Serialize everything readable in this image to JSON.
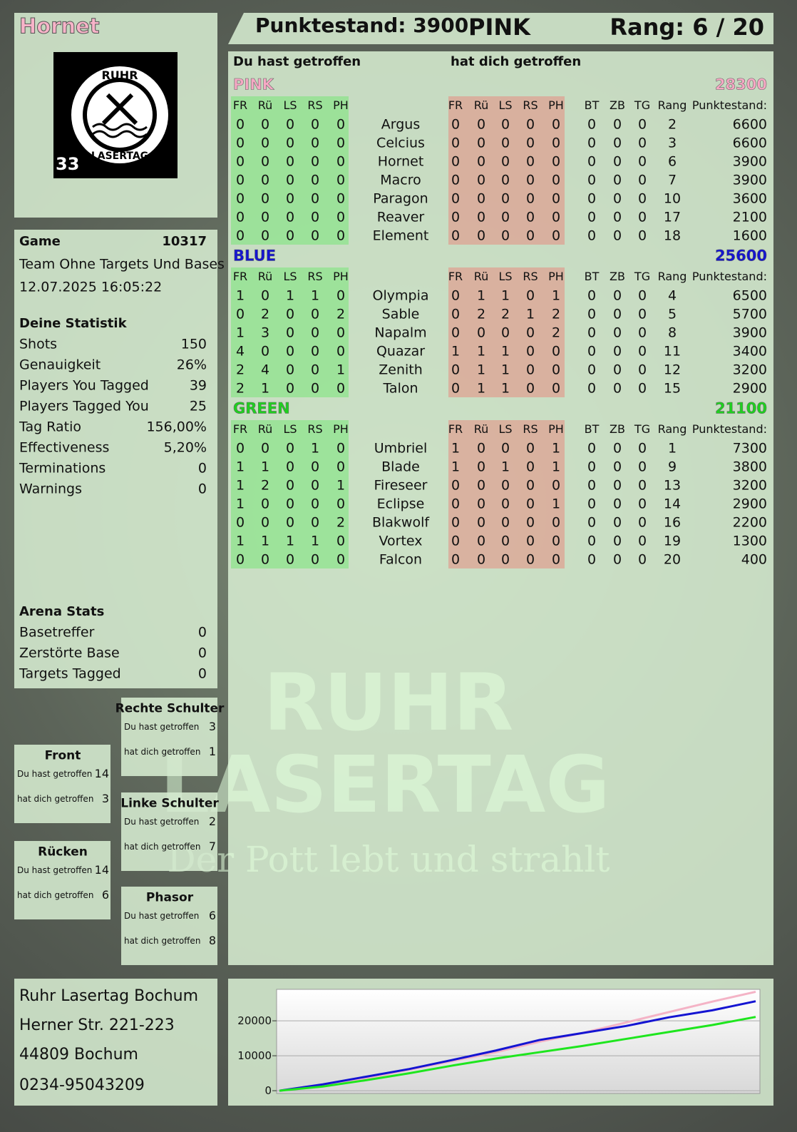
{
  "header": {
    "player": "Hornet",
    "score": "Punktestand: 3900",
    "team": "PINK",
    "rank": "Rang: 6 / 20"
  },
  "logo": {
    "top": "RUHR",
    "bottom": "LASERTAG",
    "number": "33"
  },
  "watermark": {
    "line1": "RUHR",
    "line2": "LASERTAG",
    "slogan": "Der Pott lebt und strahlt"
  },
  "game": {
    "label": "Game",
    "id": "10317",
    "mode": "Team Ohne Targets Und Bases",
    "date": "12.07.2025 16:05:22"
  },
  "stats": {
    "title": "Deine Statistik",
    "rows": [
      [
        "Shots",
        "150"
      ],
      [
        "Genauigkeit",
        "26%"
      ],
      [
        "Players You Tagged",
        "39"
      ],
      [
        "Players Tagged You",
        "25"
      ],
      [
        "Tag Ratio",
        "156,00%"
      ],
      [
        "Effectiveness",
        "5,20%"
      ],
      [
        "Terminations",
        "0"
      ],
      [
        "Warnings",
        "0"
      ]
    ]
  },
  "arena": {
    "title": "Arena Stats",
    "rows": [
      [
        "Basetreffer",
        "0"
      ],
      [
        "Zerstörte Base",
        "0"
      ],
      [
        "Targets Tagged",
        "0"
      ]
    ]
  },
  "zones": {
    "given_label": "Du hast getroffen",
    "taken_label": "hat dich getroffen",
    "items": [
      {
        "name": "Rechte Schulter",
        "given": "3",
        "taken": "1"
      },
      {
        "name": "Front",
        "given": "14",
        "taken": "3"
      },
      {
        "name": "Linke Schulter",
        "given": "2",
        "taken": "7"
      },
      {
        "name": "Rücken",
        "given": "14",
        "taken": "6"
      },
      {
        "name": "Phasor",
        "given": "6",
        "taken": "8"
      }
    ]
  },
  "address": [
    "Ruhr Lasertag Bochum",
    "Herner Str. 221-223",
    "44809 Bochum",
    "0234-95043209"
  ],
  "table": {
    "given_title": "Du hast getroffen",
    "taken_title": "hat dich getroffen",
    "hit_columns": [
      "FR",
      "Rü",
      "LS",
      "RS",
      "PH"
    ],
    "stat_columns": [
      "BT",
      "ZB",
      "TG",
      "Rang",
      "Punktestand:"
    ],
    "teams": [
      {
        "name": "PINK",
        "score": "28300",
        "color": "#f7a8c4",
        "rows": [
          {
            "name": "Argus",
            "given": [
              "0",
              "0",
              "0",
              "0",
              "0"
            ],
            "taken": [
              "0",
              "0",
              "0",
              "0",
              "0"
            ],
            "stats": [
              "0",
              "0",
              "0",
              "2",
              "6600"
            ]
          },
          {
            "name": "Celcius",
            "given": [
              "0",
              "0",
              "0",
              "0",
              "0"
            ],
            "taken": [
              "0",
              "0",
              "0",
              "0",
              "0"
            ],
            "stats": [
              "0",
              "0",
              "0",
              "3",
              "6600"
            ]
          },
          {
            "name": "Hornet",
            "given": [
              "0",
              "0",
              "0",
              "0",
              "0"
            ],
            "taken": [
              "0",
              "0",
              "0",
              "0",
              "0"
            ],
            "stats": [
              "0",
              "0",
              "0",
              "6",
              "3900"
            ]
          },
          {
            "name": "Macro",
            "given": [
              "0",
              "0",
              "0",
              "0",
              "0"
            ],
            "taken": [
              "0",
              "0",
              "0",
              "0",
              "0"
            ],
            "stats": [
              "0",
              "0",
              "0",
              "7",
              "3900"
            ]
          },
          {
            "name": "Paragon",
            "given": [
              "0",
              "0",
              "0",
              "0",
              "0"
            ],
            "taken": [
              "0",
              "0",
              "0",
              "0",
              "0"
            ],
            "stats": [
              "0",
              "0",
              "0",
              "10",
              "3600"
            ]
          },
          {
            "name": "Reaver",
            "given": [
              "0",
              "0",
              "0",
              "0",
              "0"
            ],
            "taken": [
              "0",
              "0",
              "0",
              "0",
              "0"
            ],
            "stats": [
              "0",
              "0",
              "0",
              "17",
              "2100"
            ]
          },
          {
            "name": "Element",
            "given": [
              "0",
              "0",
              "0",
              "0",
              "0"
            ],
            "taken": [
              "0",
              "0",
              "0",
              "0",
              "0"
            ],
            "stats": [
              "0",
              "0",
              "0",
              "18",
              "1600"
            ]
          }
        ]
      },
      {
        "name": "BLUE",
        "score": "25600",
        "color": "#1414d2",
        "rows": [
          {
            "name": "Olympia",
            "given": [
              "1",
              "0",
              "1",
              "1",
              "0"
            ],
            "taken": [
              "0",
              "1",
              "1",
              "0",
              "1"
            ],
            "stats": [
              "0",
              "0",
              "0",
              "4",
              "6500"
            ]
          },
          {
            "name": "Sable",
            "given": [
              "0",
              "2",
              "0",
              "0",
              "2"
            ],
            "taken": [
              "0",
              "2",
              "2",
              "1",
              "2"
            ],
            "stats": [
              "0",
              "0",
              "0",
              "5",
              "5700"
            ]
          },
          {
            "name": "Napalm",
            "given": [
              "1",
              "3",
              "0",
              "0",
              "0"
            ],
            "taken": [
              "0",
              "0",
              "0",
              "0",
              "2"
            ],
            "stats": [
              "0",
              "0",
              "0",
              "8",
              "3900"
            ]
          },
          {
            "name": "Quazar",
            "given": [
              "4",
              "0",
              "0",
              "0",
              "0"
            ],
            "taken": [
              "1",
              "1",
              "1",
              "0",
              "0"
            ],
            "stats": [
              "0",
              "0",
              "0",
              "11",
              "3400"
            ]
          },
          {
            "name": "Zenith",
            "given": [
              "2",
              "4",
              "0",
              "0",
              "1"
            ],
            "taken": [
              "0",
              "1",
              "1",
              "0",
              "0"
            ],
            "stats": [
              "0",
              "0",
              "0",
              "12",
              "3200"
            ]
          },
          {
            "name": "Talon",
            "given": [
              "2",
              "1",
              "0",
              "0",
              "0"
            ],
            "taken": [
              "0",
              "1",
              "1",
              "0",
              "0"
            ],
            "stats": [
              "0",
              "0",
              "0",
              "15",
              "2900"
            ]
          }
        ]
      },
      {
        "name": "GREEN",
        "score": "21100",
        "color": "#1ed21e",
        "rows": [
          {
            "name": "Umbriel",
            "given": [
              "0",
              "0",
              "0",
              "1",
              "0"
            ],
            "taken": [
              "1",
              "0",
              "0",
              "0",
              "1"
            ],
            "stats": [
              "0",
              "0",
              "0",
              "1",
              "7300"
            ]
          },
          {
            "name": "Blade",
            "given": [
              "1",
              "1",
              "0",
              "0",
              "0"
            ],
            "taken": [
              "1",
              "0",
              "1",
              "0",
              "1"
            ],
            "stats": [
              "0",
              "0",
              "0",
              "9",
              "3800"
            ]
          },
          {
            "name": "Fireseer",
            "given": [
              "1",
              "2",
              "0",
              "0",
              "1"
            ],
            "taken": [
              "0",
              "0",
              "0",
              "0",
              "0"
            ],
            "stats": [
              "0",
              "0",
              "0",
              "13",
              "3200"
            ]
          },
          {
            "name": "Eclipse",
            "given": [
              "1",
              "0",
              "0",
              "0",
              "0"
            ],
            "taken": [
              "0",
              "0",
              "0",
              "0",
              "1"
            ],
            "stats": [
              "0",
              "0",
              "0",
              "14",
              "2900"
            ]
          },
          {
            "name": "Blakwolf",
            "given": [
              "0",
              "0",
              "0",
              "0",
              "2"
            ],
            "taken": [
              "0",
              "0",
              "0",
              "0",
              "0"
            ],
            "stats": [
              "0",
              "0",
              "0",
              "16",
              "2200"
            ]
          },
          {
            "name": "Vortex",
            "given": [
              "1",
              "1",
              "1",
              "1",
              "0"
            ],
            "taken": [
              "0",
              "0",
              "0",
              "0",
              "0"
            ],
            "stats": [
              "0",
              "0",
              "0",
              "19",
              "1300"
            ]
          },
          {
            "name": "Falcon",
            "given": [
              "0",
              "0",
              "0",
              "0",
              "0"
            ],
            "taken": [
              "0",
              "0",
              "0",
              "0",
              "0"
            ],
            "stats": [
              "0",
              "0",
              "0",
              "20",
              "400"
            ]
          }
        ]
      }
    ]
  },
  "chart_data": {
    "type": "line",
    "ylim": [
      -800,
      29000
    ],
    "yticks": [
      0,
      10000,
      20000
    ],
    "grid": true,
    "series": [
      {
        "name": "PINK",
        "color": "#f4b3c6",
        "values": [
          0,
          1500,
          3500,
          6000,
          8500,
          11000,
          14000,
          16500,
          19500,
          22500,
          25500,
          28300
        ]
      },
      {
        "name": "BLUE",
        "color": "#1414d2",
        "values": [
          0,
          1800,
          4000,
          6200,
          8800,
          11500,
          14500,
          16500,
          18500,
          21000,
          23000,
          25600
        ]
      },
      {
        "name": "GREEN",
        "color": "#1ee61e",
        "values": [
          0,
          1200,
          3000,
          5000,
          7200,
          9200,
          11000,
          12800,
          14800,
          16800,
          18800,
          21100
        ]
      }
    ]
  }
}
